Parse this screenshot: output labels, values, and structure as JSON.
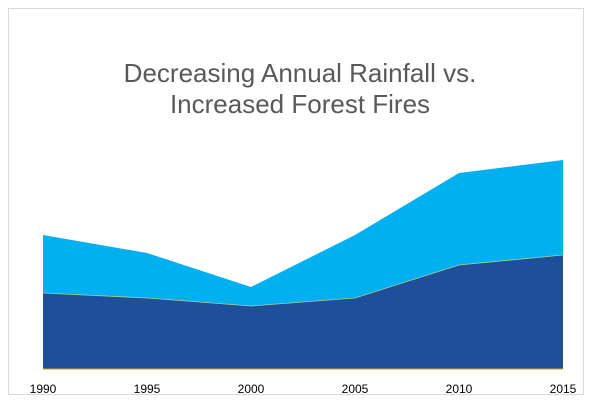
{
  "chart_data": {
    "type": "area",
    "stacked": true,
    "title_lines": [
      "Decreasing Annual Rainfall vs.",
      "Increased Forest Fires"
    ],
    "x": [
      1990,
      1995,
      2000,
      2005,
      2010,
      2015
    ],
    "x_tick_labels": [
      "1990",
      "1995",
      "2000",
      "2005",
      "2010",
      "2015"
    ],
    "series": [
      {
        "color": "#1f4e9b",
        "values": [
          76,
          71,
          63,
          71,
          104,
          114
        ]
      },
      {
        "color": "#00b0f0",
        "values": [
          58,
          45,
          19,
          63,
          92,
          95
        ]
      }
    ],
    "stack_totals": [
      134,
      116,
      82,
      134,
      196,
      209
    ],
    "ylim": [
      0,
      260
    ],
    "grid": false,
    "legend": "none",
    "baseline_color": "#c9a800"
  }
}
